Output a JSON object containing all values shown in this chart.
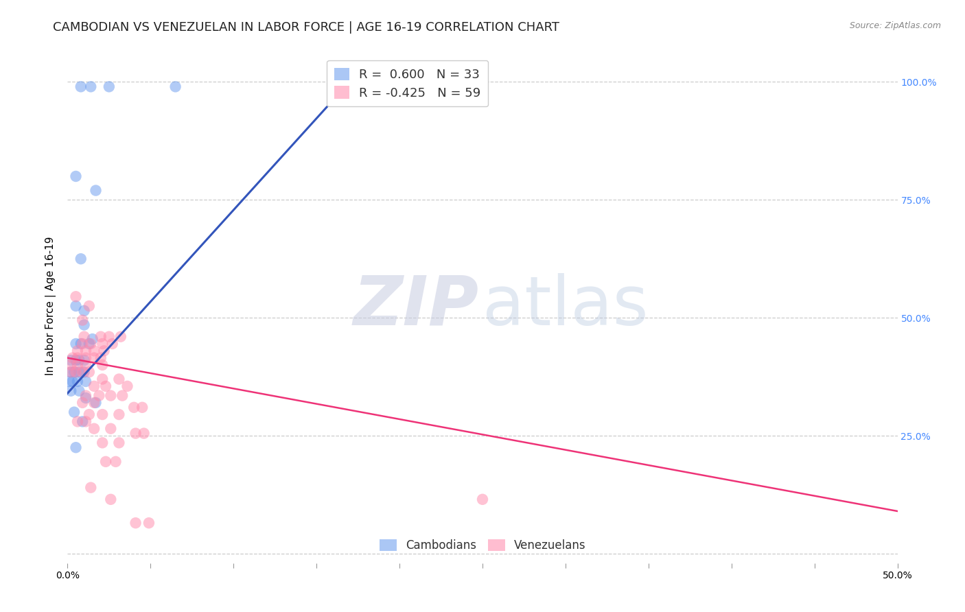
{
  "title": "CAMBODIAN VS VENEZUELAN IN LABOR FORCE | AGE 16-19 CORRELATION CHART",
  "source": "Source: ZipAtlas.com",
  "ylabel": "In Labor Force | Age 16-19",
  "xlim": [
    0.0,
    0.5
  ],
  "ylim": [
    -0.02,
    1.07
  ],
  "ytick_positions": [
    0.0,
    0.25,
    0.5,
    0.75,
    1.0
  ],
  "yticklabels_right": [
    "",
    "25.0%",
    "50.0%",
    "75.0%",
    "100.0%"
  ],
  "xticks": [
    0.0,
    0.05,
    0.1,
    0.15,
    0.2,
    0.25,
    0.3,
    0.35,
    0.4,
    0.45,
    0.5
  ],
  "xticklabels": [
    "0.0%",
    "",
    "",
    "",
    "",
    "",
    "",
    "",
    "",
    "",
    "50.0%"
  ],
  "cambodian_color": "#6699ee",
  "venezuelan_color": "#ff88aa",
  "blue_line_x": [
    0.0,
    0.175
  ],
  "blue_line_y": [
    0.34,
    1.02
  ],
  "pink_line_x": [
    0.0,
    0.5
  ],
  "pink_line_y": [
    0.415,
    0.09
  ],
  "cambodian_scatter": [
    [
      0.008,
      0.99
    ],
    [
      0.014,
      0.99
    ],
    [
      0.025,
      0.99
    ],
    [
      0.065,
      0.99
    ],
    [
      0.005,
      0.8
    ],
    [
      0.017,
      0.77
    ],
    [
      0.008,
      0.625
    ],
    [
      0.005,
      0.525
    ],
    [
      0.01,
      0.515
    ],
    [
      0.01,
      0.485
    ],
    [
      0.005,
      0.445
    ],
    [
      0.008,
      0.445
    ],
    [
      0.013,
      0.445
    ],
    [
      0.015,
      0.455
    ],
    [
      0.002,
      0.41
    ],
    [
      0.005,
      0.41
    ],
    [
      0.007,
      0.41
    ],
    [
      0.01,
      0.41
    ],
    [
      0.002,
      0.385
    ],
    [
      0.004,
      0.385
    ],
    [
      0.007,
      0.385
    ],
    [
      0.01,
      0.385
    ],
    [
      0.001,
      0.365
    ],
    [
      0.003,
      0.365
    ],
    [
      0.006,
      0.365
    ],
    [
      0.011,
      0.365
    ],
    [
      0.002,
      0.345
    ],
    [
      0.007,
      0.345
    ],
    [
      0.011,
      0.33
    ],
    [
      0.017,
      0.32
    ],
    [
      0.004,
      0.3
    ],
    [
      0.009,
      0.28
    ],
    [
      0.005,
      0.225
    ]
  ],
  "venezuelan_scatter": [
    [
      0.005,
      0.545
    ],
    [
      0.013,
      0.525
    ],
    [
      0.009,
      0.495
    ],
    [
      0.01,
      0.46
    ],
    [
      0.02,
      0.46
    ],
    [
      0.025,
      0.46
    ],
    [
      0.032,
      0.46
    ],
    [
      0.009,
      0.445
    ],
    [
      0.014,
      0.445
    ],
    [
      0.021,
      0.445
    ],
    [
      0.027,
      0.445
    ],
    [
      0.006,
      0.43
    ],
    [
      0.011,
      0.43
    ],
    [
      0.016,
      0.43
    ],
    [
      0.022,
      0.43
    ],
    [
      0.003,
      0.415
    ],
    [
      0.006,
      0.415
    ],
    [
      0.011,
      0.415
    ],
    [
      0.016,
      0.415
    ],
    [
      0.02,
      0.415
    ],
    [
      0.002,
      0.4
    ],
    [
      0.006,
      0.4
    ],
    [
      0.011,
      0.4
    ],
    [
      0.021,
      0.4
    ],
    [
      0.002,
      0.385
    ],
    [
      0.005,
      0.385
    ],
    [
      0.009,
      0.385
    ],
    [
      0.013,
      0.385
    ],
    [
      0.021,
      0.37
    ],
    [
      0.031,
      0.37
    ],
    [
      0.016,
      0.355
    ],
    [
      0.023,
      0.355
    ],
    [
      0.036,
      0.355
    ],
    [
      0.011,
      0.335
    ],
    [
      0.019,
      0.335
    ],
    [
      0.026,
      0.335
    ],
    [
      0.033,
      0.335
    ],
    [
      0.009,
      0.32
    ],
    [
      0.016,
      0.32
    ],
    [
      0.04,
      0.31
    ],
    [
      0.045,
      0.31
    ],
    [
      0.013,
      0.295
    ],
    [
      0.021,
      0.295
    ],
    [
      0.031,
      0.295
    ],
    [
      0.006,
      0.28
    ],
    [
      0.011,
      0.28
    ],
    [
      0.016,
      0.265
    ],
    [
      0.026,
      0.265
    ],
    [
      0.041,
      0.255
    ],
    [
      0.046,
      0.255
    ],
    [
      0.021,
      0.235
    ],
    [
      0.031,
      0.235
    ],
    [
      0.023,
      0.195
    ],
    [
      0.029,
      0.195
    ],
    [
      0.026,
      0.115
    ],
    [
      0.25,
      0.115
    ],
    [
      0.041,
      0.065
    ],
    [
      0.049,
      0.065
    ],
    [
      0.014,
      0.14
    ]
  ],
  "background_color": "#ffffff",
  "grid_color": "#cccccc",
  "title_fontsize": 13,
  "axis_label_fontsize": 11,
  "tick_fontsize": 10
}
